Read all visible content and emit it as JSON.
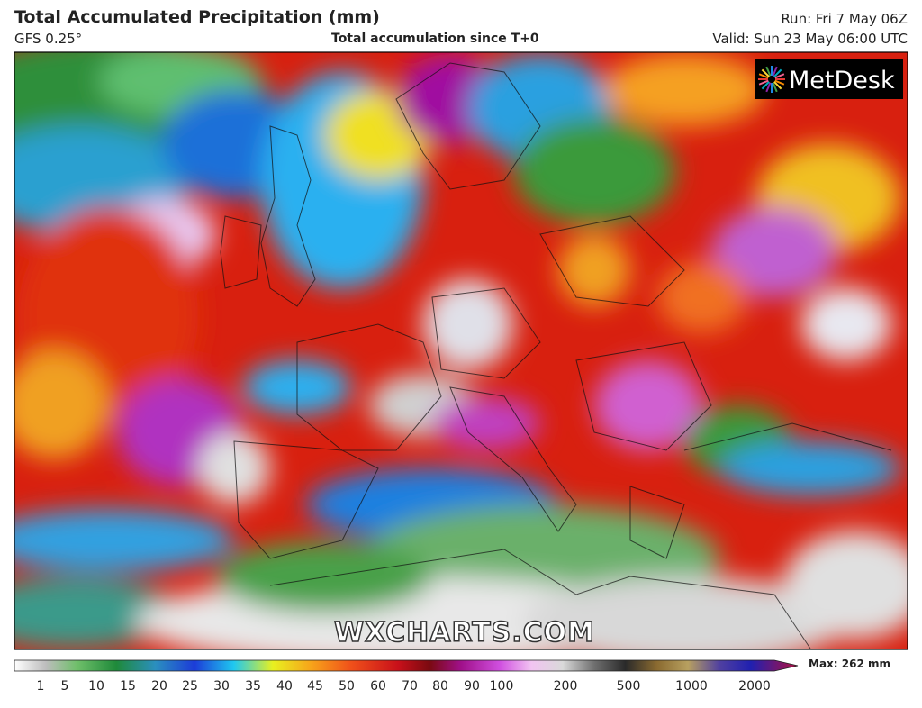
{
  "header": {
    "title": "Total Accumulated Precipitation (mm)",
    "model": "GFS 0.25°",
    "subtitle": "Total accumulation since T+0",
    "run": "Run: Fri 7 May 06Z",
    "valid": "Valid: Sun 23 May 06:00 UTC"
  },
  "logo": "MetDesk",
  "watermark": "WXCHARTS.COM",
  "legend": {
    "ticks": [
      1,
      5,
      10,
      15,
      20,
      25,
      30,
      35,
      40,
      45,
      50,
      60,
      70,
      80,
      90,
      100,
      200,
      500,
      1000,
      2000
    ],
    "max_label": "Max: 262 mm"
  }
}
